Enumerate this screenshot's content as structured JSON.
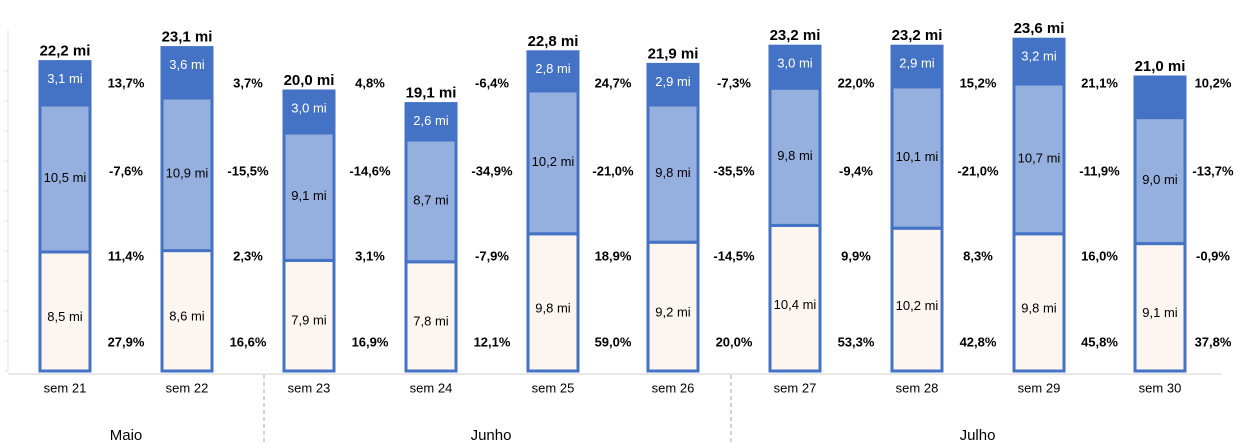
{
  "chart_data": {
    "type": "bar",
    "stacked": true,
    "categories": [
      "sem 21",
      "sem 22",
      "sem 23",
      "sem 24",
      "sem 25",
      "sem 26",
      "sem 27",
      "sem 28",
      "sem 29",
      "sem 30"
    ],
    "totals": [
      "22,2 mi",
      "23,1 mi",
      "20,0 mi",
      "19,1 mi",
      "22,8 mi",
      "21,9 mi",
      "23,2 mi",
      "23,2 mi",
      "23,6 mi",
      "21,0 mi"
    ],
    "total_values": [
      22.2,
      23.1,
      20.0,
      19.1,
      22.8,
      21.9,
      23.2,
      23.2,
      23.6,
      21.0
    ],
    "ylim": [
      0,
      25
    ],
    "series": [
      {
        "values": [
          8.5,
          8.6,
          7.9,
          7.8,
          9.8,
          9.2,
          10.4,
          10.2,
          9.8,
          9.1
        ],
        "labels": [
          "8,5 mi",
          "8,6 mi",
          "7,9 mi",
          "7,8 mi",
          "9,8 mi",
          "9,2 mi",
          "10,4 mi",
          "10,2 mi",
          "9,8 mi",
          "9,1 mi"
        ],
        "color": "#fdf5ef"
      },
      {
        "values": [
          10.5,
          10.9,
          9.1,
          8.7,
          10.2,
          9.8,
          9.8,
          10.1,
          10.7,
          9.0
        ],
        "labels": [
          "10,5 mi",
          "10,9 mi",
          "9,1 mi",
          "8,7 mi",
          "10,2 mi",
          "9,8 mi",
          "9,8 mi",
          "10,1 mi",
          "10,7 mi",
          "9,0 mi"
        ],
        "color": "#95b0de"
      },
      {
        "values": [
          3.1,
          3.6,
          3.0,
          2.6,
          2.8,
          2.9,
          3.0,
          2.9,
          3.2,
          2.9
        ],
        "labels": [
          "3,1 mi",
          "3,6 mi",
          "3,0 mi",
          "2,6 mi",
          "2,8 mi",
          "2,9 mi",
          "3,0 mi",
          "2,9 mi",
          "3,2 mi",
          ""
        ],
        "color": "#4472c4"
      }
    ],
    "bar_outline_color": "#4472c4",
    "left_percentages": {
      "rows": [
        [
          "",
          "13,7%",
          "4,8%",
          "-6,4%",
          "24,7%",
          "-7,3%",
          "22,0%",
          "15,2%",
          "21,1%",
          "10,2%"
        ],
        [
          "",
          "-7,6%",
          "-14,6%",
          "-34,9%",
          "-21,0%",
          "-35,5%",
          "-9,4%",
          "-21,0%",
          "-11,9%",
          "-13,7%"
        ],
        [
          "",
          "11,4%",
          "3,1%",
          "-7,9%",
          "18,9%",
          "-14,5%",
          "9,9%",
          "8,3%",
          "16,0%",
          "-0,9%"
        ],
        [
          "",
          "27,9%",
          "16,9%",
          "12,1%",
          "59,0%",
          "20,0%",
          "53,3%",
          "42,8%",
          "45,8%",
          "37,8%"
        ]
      ]
    },
    "right_percentages": {
      "gap_after_bar": [
        [
          "13,7%",
          "3,7%",
          "4,8%",
          "-6,4%",
          "24,7%",
          "-7,3%",
          "22,0%",
          "15,2%",
          "21,1%",
          "10,2%"
        ],
        [
          "-7,6%",
          "-15,5%",
          "-14,6%",
          "-34,9%",
          "-21,0%",
          "-35,5%",
          "-9,4%",
          "-21,0%",
          "-11,9%",
          "-13,7%"
        ],
        [
          "11,4%",
          "2,3%",
          "3,1%",
          "-7,9%",
          "18,9%",
          "-14,5%",
          "9,9%",
          "8,3%",
          "16,0%",
          "-0,9%"
        ],
        [
          "27,9%",
          "16,6%",
          "16,9%",
          "12,1%",
          "59,0%",
          "20,0%",
          "53,3%",
          "42,8%",
          "45,8%",
          "37,8%"
        ]
      ]
    },
    "gap_labels": [
      {
        "after": 0,
        "top": "13,7%",
        "mid": "-7,6%",
        "low": "11,4%",
        "base": "27,9%"
      },
      {
        "after": 1,
        "top": "3,7%",
        "mid": "-15,5%",
        "low": "2,3%",
        "base": "16,6%"
      },
      {
        "after": 2,
        "top": "4,8%",
        "mid": "-14,6%",
        "low": "3,1%",
        "base": "16,9%"
      },
      {
        "after": 3,
        "top": "-6,4%",
        "mid": "-34,9%",
        "low": "-7,9%",
        "base": "12,1%"
      },
      {
        "after": 4,
        "top": "24,7%",
        "mid": "-21,0%",
        "low": "18,9%",
        "base": "59,0%"
      },
      {
        "after": 5,
        "top": "-7,3%",
        "mid": "-35,5%",
        "low": "-14,5%",
        "base": "20,0%"
      },
      {
        "after": 6,
        "top": "22,0%",
        "mid": "-9,4%",
        "low": "9,9%",
        "base": "53,3%"
      },
      {
        "after": 7,
        "top": "15,2%",
        "mid": "-21,0%",
        "low": "8,3%",
        "base": "42,8%"
      },
      {
        "after": 8,
        "top": "21,1%",
        "mid": "-11,9%",
        "low": "16,0%",
        "base": "45,8%"
      }
    ],
    "last_bar_right_labels": {
      "top": "10,2%",
      "mid": "-13,7%",
      "low": "-0,9%",
      "base": "37,8%"
    },
    "months": [
      {
        "label": "Maio",
        "from": 0,
        "to": 1
      },
      {
        "label": "Junho",
        "from": 2,
        "to": 5
      },
      {
        "label": "Julho",
        "from": 6,
        "to": 9
      }
    ],
    "grid": false
  }
}
